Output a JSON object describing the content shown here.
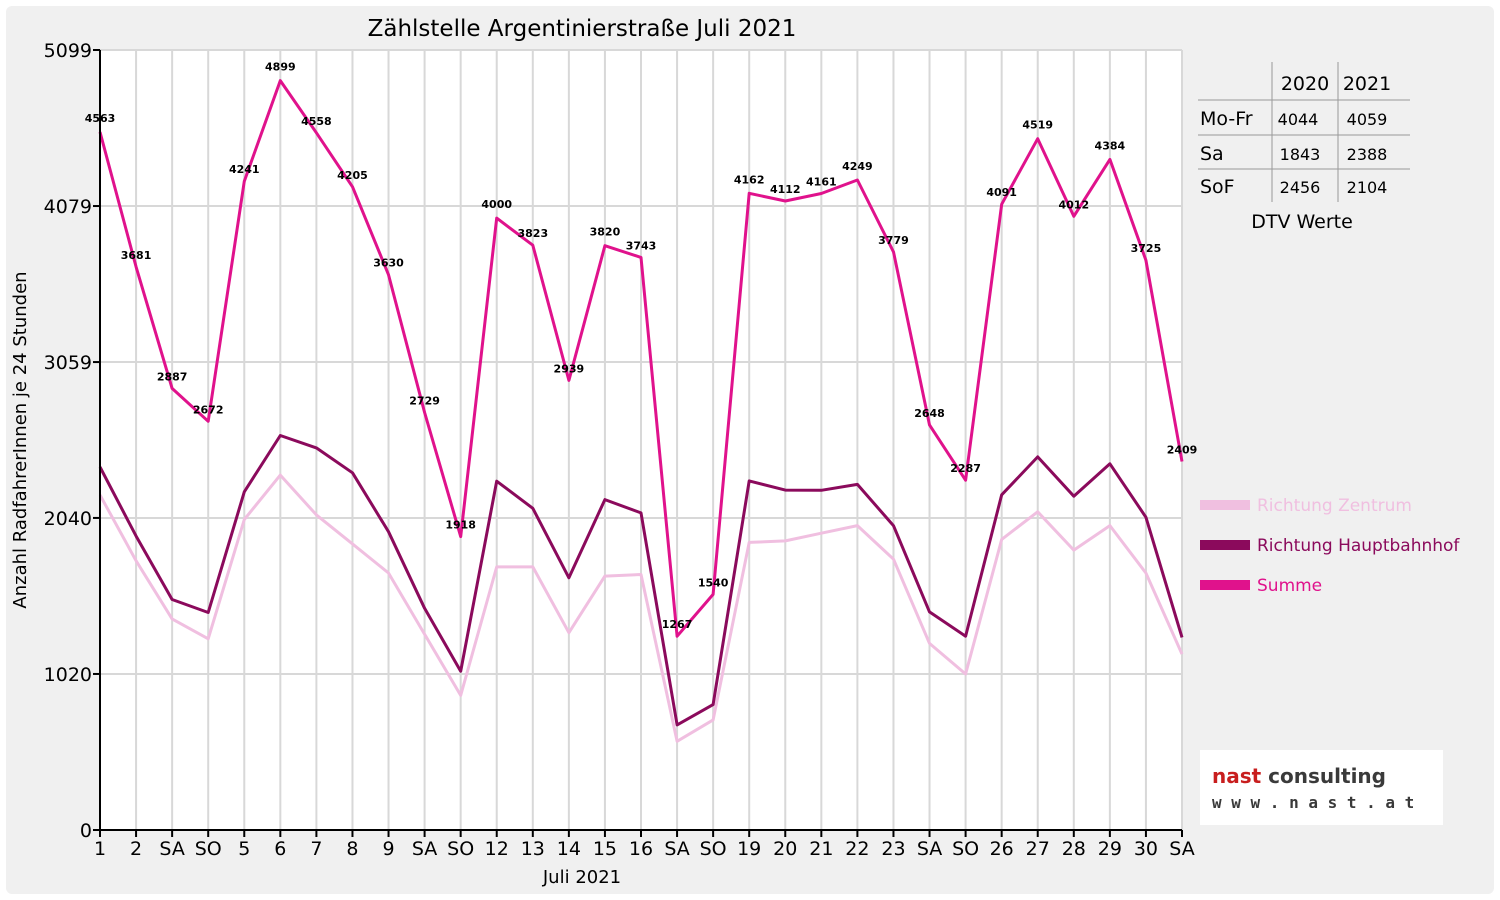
{
  "chart_data": {
    "type": "line",
    "title": "Zählstelle Argentinierstraße Juli 2021",
    "xlabel": "Juli 2021",
    "ylabel": "Anzahl RadfahrerInnen je 24 Stunden",
    "ylim": [
      0,
      5099
    ],
    "yticks": [
      "0",
      "1020",
      "2040",
      "3059",
      "4079",
      "5099"
    ],
    "grid": true,
    "categories": [
      "1",
      "2",
      "SA",
      "SO",
      "5",
      "6",
      "7",
      "8",
      "9",
      "SA",
      "SO",
      "12",
      "13",
      "14",
      "15",
      "16",
      "SA",
      "SO",
      "19",
      "20",
      "21",
      "22",
      "23",
      "SA",
      "SO",
      "26",
      "27",
      "28",
      "29",
      "30",
      "SA"
    ],
    "highlight_categories": [
      "SO"
    ],
    "highlight_color": "#e00000",
    "series": [
      {
        "name": "Richtung Zentrum",
        "color": "#f0bfe0",
        "values": [
          2190,
          1760,
          1380,
          1250,
          2030,
          2320,
          2060,
          1870,
          1680,
          1280,
          880,
          1720,
          1720,
          1290,
          1660,
          1670,
          580,
          720,
          1880,
          1890,
          1940,
          1990,
          1770,
          1220,
          1020,
          1900,
          2080,
          1830,
          1990,
          1680,
          1150
        ]
      },
      {
        "name": "Richtung Hauptbahnhof",
        "color": "#8b0a5c",
        "values": [
          2373,
          1921,
          1507,
          1422,
          2211,
          2579,
          2498,
          2335,
          1950,
          1449,
          1038,
          2280,
          2103,
          1649,
          2160,
          2073,
          687,
          820,
          2282,
          2222,
          2221,
          2259,
          1989,
          1426,
          1267,
          2191,
          2439,
          2182,
          2394,
          2045,
          1259
        ]
      },
      {
        "name": "Summe",
        "color": "#e0128c",
        "values": [
          4563,
          3681,
          2887,
          2672,
          4241,
          4899,
          4558,
          4205,
          3630,
          2729,
          1918,
          4000,
          3823,
          2939,
          3820,
          3743,
          1267,
          1540,
          4162,
          4112,
          4161,
          4249,
          3779,
          2648,
          2287,
          4091,
          4519,
          4012,
          4384,
          3725,
          2409
        ]
      }
    ],
    "data_labels": [
      "4563",
      "3681",
      "2887",
      "2672",
      "4241",
      "4899",
      "4558",
      "4205",
      "3630",
      "2729",
      "1918",
      "4000",
      "3823",
      "2939",
      "3820",
      "3743",
      "1267",
      "1540",
      "4162",
      "4112",
      "4161",
      "4249",
      "3779",
      "2648",
      "2287",
      "4091",
      "4519",
      "4012",
      "4384",
      "3725",
      "2409"
    ],
    "legend_position": "right"
  },
  "dtv_table": {
    "headers": [
      "",
      "2020",
      "2021"
    ],
    "rows": [
      [
        "Mo-Fr",
        "4044",
        "4059"
      ],
      [
        "Sa",
        "1843",
        "2388"
      ],
      [
        "SoF",
        "2456",
        "2104"
      ]
    ],
    "caption": "DTV Werte"
  },
  "logo": {
    "line1": "nast consulting",
    "line2": "w w w . n a s t . a t",
    "red": "#c81e1e",
    "dark": "#3a3a3a"
  }
}
